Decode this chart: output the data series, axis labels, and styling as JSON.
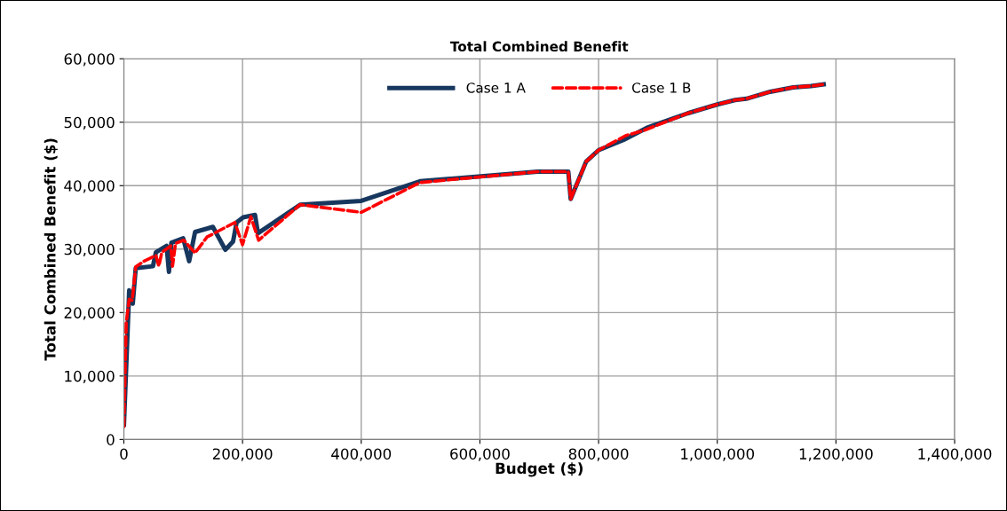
{
  "chart_data": {
    "type": "line",
    "title": "Total Combined Benefit",
    "xlabel": "Budget ($)",
    "ylabel": "Total Combined Benefit ($)",
    "xlim": [
      0,
      1400000
    ],
    "ylim": [
      0,
      60000
    ],
    "xticks": [
      {
        "value": 0,
        "label": "0"
      },
      {
        "value": 200000,
        "label": "200,000"
      },
      {
        "value": 400000,
        "label": "400,000"
      },
      {
        "value": 600000,
        "label": "600,000"
      },
      {
        "value": 800000,
        "label": "800,000"
      },
      {
        "value": 1000000,
        "label": "1,000,000"
      },
      {
        "value": 1200000,
        "label": "1,200,000"
      },
      {
        "value": 1400000,
        "label": "1,400,000"
      }
    ],
    "yticks": [
      {
        "value": 0,
        "label": "0"
      },
      {
        "value": 10000,
        "label": "10,000"
      },
      {
        "value": 20000,
        "label": "20,000"
      },
      {
        "value": 30000,
        "label": "30,000"
      },
      {
        "value": 40000,
        "label": "40,000"
      },
      {
        "value": 50000,
        "label": "50,000"
      },
      {
        "value": 60000,
        "label": "60,000"
      }
    ],
    "grid": true,
    "legend": "top",
    "marker": "none",
    "series": [
      {
        "name": "Case 1 A",
        "color": "#17375e",
        "line_style": "solid",
        "x": [
          0,
          9000,
          15000,
          20000,
          49000,
          54000,
          72000,
          76000,
          80000,
          100000,
          110000,
          120000,
          150000,
          171000,
          184000,
          190000,
          201000,
          221000,
          226000,
          297000,
          400000,
          499000,
          697000,
          749000,
          753000,
          779000,
          800000,
          842000,
          881000,
          950000,
          1000000,
          1030000,
          1049000,
          1089000,
          1128000,
          1158000,
          1183000
        ],
        "values": [
          2000,
          23500,
          21400,
          27000,
          27300,
          29500,
          30500,
          26400,
          31000,
          31700,
          28100,
          32700,
          33500,
          29900,
          31200,
          34200,
          35000,
          35400,
          32500,
          37000,
          37600,
          40700,
          42200,
          42200,
          37900,
          43800,
          45600,
          47200,
          49100,
          51400,
          52800,
          53500,
          53700,
          54800,
          55500,
          55700,
          56000
        ]
      },
      {
        "name": "Case 1 B",
        "color": "#ff0000",
        "line_style": "dashed",
        "x": [
          0,
          4000,
          9000,
          14000,
          20000,
          34000,
          54000,
          59000,
          64000,
          79000,
          82000,
          87000,
          101000,
          120000,
          140000,
          187000,
          200000,
          214000,
          227000,
          297000,
          400000,
          499000,
          697000,
          749000,
          753000,
          779000,
          800000,
          846000,
          876000,
          950000,
          1000000,
          1030000,
          1049000,
          1089000,
          1128000,
          1158000,
          1183000
        ],
        "values": [
          2000,
          18400,
          22100,
          21900,
          27200,
          28100,
          29000,
          27300,
          29500,
          30500,
          27300,
          30900,
          31400,
          29400,
          31900,
          34200,
          30700,
          35100,
          31400,
          37000,
          35800,
          40500,
          42200,
          42200,
          37900,
          43800,
          45600,
          47900,
          48700,
          51400,
          52800,
          53500,
          53700,
          54800,
          55500,
          55700,
          56000
        ]
      }
    ]
  }
}
